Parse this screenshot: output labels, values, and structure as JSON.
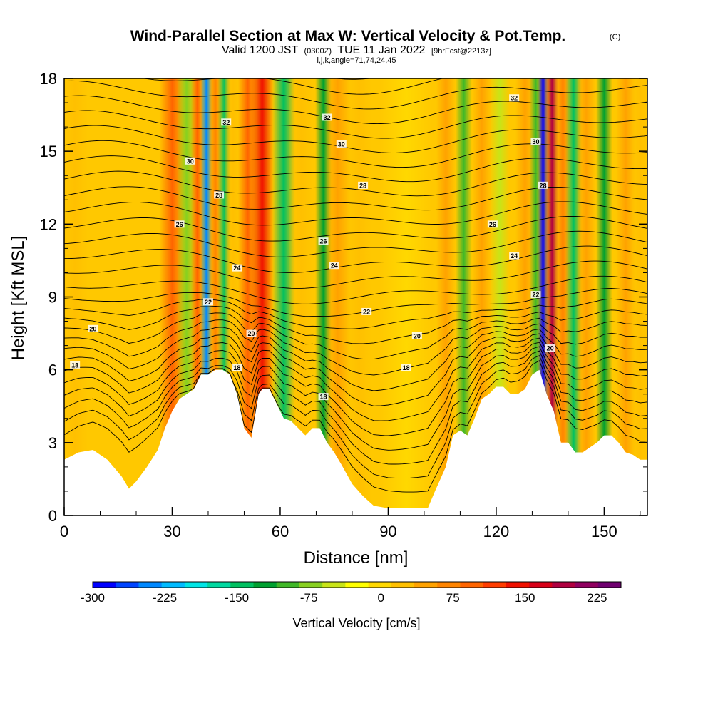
{
  "title": {
    "main": "Wind-Parallel Section at Max W: Vertical Velocity & Pot.Temp.",
    "main_unit": "(C)",
    "valid_prefix": "Valid 1200 JST",
    "valid_utc": "(0300Z)",
    "valid_date": "TUE 11 Jan 2022",
    "forecast": "[9hrFcst@2213z]",
    "indices": "i,j,k,angle=71,74,24,45"
  },
  "chart_data": {
    "type": "heatmap",
    "xlabel": "Distance [nm]",
    "ylabel": "Height [Kft MSL]",
    "xlim": [
      0,
      162
    ],
    "ylim": [
      0,
      18
    ],
    "x_ticks": [
      0,
      30,
      60,
      90,
      120,
      150
    ],
    "y_ticks": [
      0,
      3,
      6,
      9,
      12,
      15,
      18
    ],
    "terrain": {
      "x": [
        0,
        4,
        8,
        12,
        16,
        18,
        20,
        23,
        26,
        28,
        30,
        32,
        34,
        36,
        38,
        40,
        42,
        44,
        46,
        48,
        50,
        52,
        54,
        55,
        57,
        59,
        61,
        63,
        65,
        67,
        69,
        71,
        73,
        75,
        77,
        80,
        83,
        86,
        90,
        94,
        98,
        101,
        103,
        106,
        108,
        110,
        112,
        114,
        116,
        118,
        120,
        122,
        124,
        126,
        128,
        130,
        132,
        134,
        136,
        138,
        140,
        142,
        144,
        146,
        148,
        150,
        152,
        154,
        156,
        158,
        160,
        162
      ],
      "y": [
        2.3,
        2.6,
        2.7,
        2.3,
        1.6,
        1.1,
        1.4,
        2.0,
        2.7,
        3.6,
        4.3,
        4.8,
        5.0,
        5.2,
        5.8,
        5.8,
        6.0,
        6.0,
        5.8,
        5.0,
        3.6,
        3.2,
        5.0,
        5.2,
        5.2,
        4.6,
        4.0,
        3.9,
        3.6,
        3.3,
        3.6,
        3.6,
        3.0,
        2.6,
        2.1,
        1.3,
        0.8,
        0.4,
        0.3,
        0.3,
        0.3,
        0.3,
        1.0,
        2.0,
        3.3,
        3.5,
        3.3,
        4.0,
        4.8,
        5.0,
        5.3,
        5.3,
        5.0,
        5.0,
        5.2,
        5.8,
        6.0,
        5.0,
        4.3,
        3.0,
        3.0,
        2.6,
        2.6,
        2.8,
        3.0,
        3.3,
        3.3,
        3.0,
        2.6,
        2.5,
        2.3,
        2.3
      ]
    },
    "vertical_velocity_bands": [
      {
        "x": 3,
        "w_cm_s": 35,
        "width_nm": 4
      },
      {
        "x": 30,
        "w_cm_s": 110,
        "width_nm": 4
      },
      {
        "x": 34,
        "w_cm_s": -75,
        "width_nm": 3
      },
      {
        "x": 37,
        "w_cm_s": 110,
        "width_nm": 2
      },
      {
        "x": 39.5,
        "w_cm_s": -250,
        "width_nm": 1.8
      },
      {
        "x": 42,
        "w_cm_s": 75,
        "width_nm": 2
      },
      {
        "x": 44.5,
        "w_cm_s": -150,
        "width_nm": 2
      },
      {
        "x": 47,
        "w_cm_s": 40,
        "width_nm": 3
      },
      {
        "x": 51,
        "w_cm_s": 100,
        "width_nm": 3
      },
      {
        "x": 55,
        "w_cm_s": 150,
        "width_nm": 3.5
      },
      {
        "x": 61,
        "w_cm_s": -130,
        "width_nm": 3.5
      },
      {
        "x": 66,
        "w_cm_s": 40,
        "width_nm": 4
      },
      {
        "x": 72,
        "w_cm_s": -120,
        "width_nm": 2.5
      },
      {
        "x": 76,
        "w_cm_s": 60,
        "width_nm": 4
      },
      {
        "x": 82,
        "w_cm_s": 40,
        "width_nm": 4
      },
      {
        "x": 95,
        "w_cm_s": 15,
        "width_nm": 8
      },
      {
        "x": 106,
        "w_cm_s": 50,
        "width_nm": 3
      },
      {
        "x": 111,
        "w_cm_s": -80,
        "width_nm": 2.5
      },
      {
        "x": 116,
        "w_cm_s": 60,
        "width_nm": 3
      },
      {
        "x": 121,
        "w_cm_s": -50,
        "width_nm": 3
      },
      {
        "x": 128,
        "w_cm_s": 60,
        "width_nm": 3
      },
      {
        "x": 131,
        "w_cm_s": -100,
        "width_nm": 2
      },
      {
        "x": 133,
        "w_cm_s": -280,
        "width_nm": 1.6
      },
      {
        "x": 135.5,
        "w_cm_s": 210,
        "width_nm": 2
      },
      {
        "x": 138.5,
        "w_cm_s": 90,
        "width_nm": 2.5
      },
      {
        "x": 141.5,
        "w_cm_s": -130,
        "width_nm": 2.5
      },
      {
        "x": 145,
        "w_cm_s": 50,
        "width_nm": 3
      },
      {
        "x": 150,
        "w_cm_s": -110,
        "width_nm": 2.5
      },
      {
        "x": 156,
        "w_cm_s": 70,
        "width_nm": 3
      },
      {
        "x": 160,
        "w_cm_s": 30,
        "width_nm": 3
      }
    ],
    "potential_temperature_contours": {
      "unit": "C",
      "interval": 1,
      "levels_start": 12,
      "levels_count": 29
    },
    "contour_labels": [
      {
        "text": "18",
        "x": 3,
        "y": 6.2
      },
      {
        "text": "20",
        "x": 8,
        "y": 7.7
      },
      {
        "text": "26",
        "x": 32,
        "y": 12.0
      },
      {
        "text": "30",
        "x": 35,
        "y": 14.6
      },
      {
        "text": "22",
        "x": 40,
        "y": 8.8
      },
      {
        "text": "28",
        "x": 43,
        "y": 13.2
      },
      {
        "text": "32",
        "x": 45,
        "y": 16.2
      },
      {
        "text": "18",
        "x": 48,
        "y": 6.1
      },
      {
        "text": "24",
        "x": 48,
        "y": 10.2
      },
      {
        "text": "20",
        "x": 52,
        "y": 7.5
      },
      {
        "text": "18",
        "x": 72,
        "y": 4.9
      },
      {
        "text": "26",
        "x": 72,
        "y": 11.3
      },
      {
        "text": "32",
        "x": 73,
        "y": 16.4
      },
      {
        "text": "24",
        "x": 75,
        "y": 10.3
      },
      {
        "text": "30",
        "x": 77,
        "y": 15.3
      },
      {
        "text": "22",
        "x": 84,
        "y": 8.4
      },
      {
        "text": "28",
        "x": 83,
        "y": 13.6
      },
      {
        "text": "18",
        "x": 95,
        "y": 6.1
      },
      {
        "text": "20",
        "x": 98,
        "y": 7.4
      },
      {
        "text": "26",
        "x": 119,
        "y": 12.0
      },
      {
        "text": "24",
        "x": 125,
        "y": 10.7
      },
      {
        "text": "32",
        "x": 125,
        "y": 17.2
      },
      {
        "text": "22",
        "x": 131,
        "y": 9.1
      },
      {
        "text": "30",
        "x": 131,
        "y": 15.4
      },
      {
        "text": "28",
        "x": 133,
        "y": 13.6
      },
      {
        "text": "20",
        "x": 135,
        "y": 6.9
      }
    ],
    "colorbar": {
      "title": "Vertical Velocity [cm/s]",
      "min": -300,
      "max": 250,
      "step": 25,
      "tick_values": [
        -300,
        -225,
        -150,
        -75,
        0,
        75,
        150,
        225
      ],
      "tick_labels": [
        "-300",
        "-225",
        "-150",
        "-75",
        "0",
        "75",
        "150",
        "225"
      ],
      "colors": [
        "#0000ff",
        "#0044ff",
        "#0088ff",
        "#00bbff",
        "#00e5e5",
        "#00d8a0",
        "#00c060",
        "#00a030",
        "#40b828",
        "#88d020",
        "#c8e418",
        "#ffff00",
        "#ffd800",
        "#ffc000",
        "#ffa200",
        "#ff8400",
        "#ff6400",
        "#ff3c00",
        "#f01000",
        "#d80018",
        "#b00040",
        "#900060",
        "#700070"
      ]
    }
  }
}
